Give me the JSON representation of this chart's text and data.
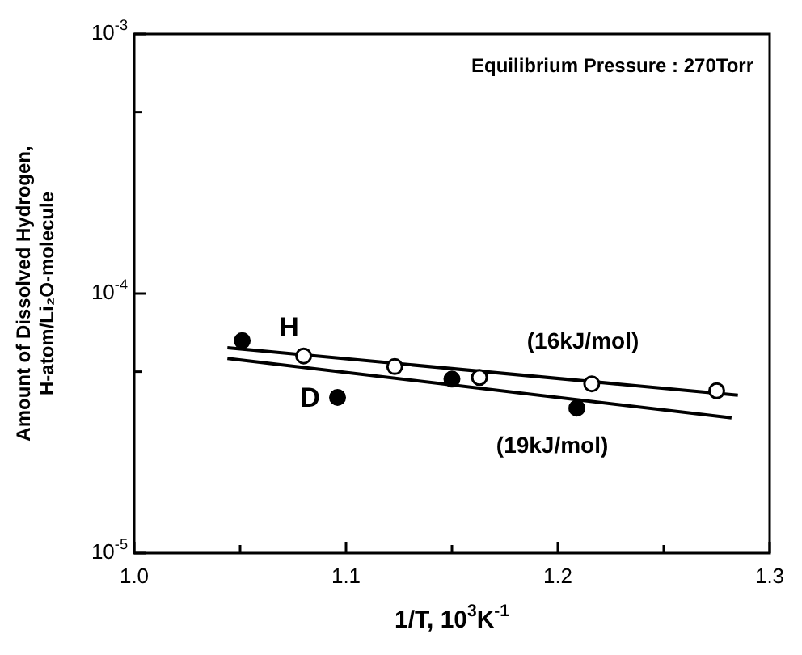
{
  "chart_data": {
    "type": "scatter",
    "xlabel": "1/T, 10$^{3}$K$^{-1}$",
    "ylabel": "Amount of Dissolved Hydrogen,\nH-atom/Li₂O-molecule",
    "xlim": [
      1.0,
      1.3
    ],
    "xticks": [
      {
        "value": 1.0,
        "label": "1.0"
      },
      {
        "value": 1.05,
        "label": null
      },
      {
        "value": 1.1,
        "label": "1.1"
      },
      {
        "value": 1.15,
        "label": null
      },
      {
        "value": 1.2,
        "label": "1.2"
      },
      {
        "value": 1.25,
        "label": null
      },
      {
        "value": 1.3,
        "label": "1.3"
      }
    ],
    "ylim": [
      1e-05,
      0.001
    ],
    "yticks": [
      {
        "value": 1e-05,
        "label": "10$^{-5}$"
      },
      {
        "value": 5e-05,
        "label": null
      },
      {
        "value": 0.0001,
        "label": "10$^{-4}$"
      },
      {
        "value": 0.0005,
        "label": null
      },
      {
        "value": 0.001,
        "label": "10$^{-3}$"
      }
    ],
    "log": "y",
    "marker": "circle",
    "series": [
      {
        "name": "H",
        "color": "#ffffff",
        "x": [
          1.08,
          1.123,
          1.163,
          1.216,
          1.275
        ],
        "values": [
          5.75e-05,
          5.23e-05,
          4.75e-05,
          4.49e-05,
          4.22e-05
        ]
      },
      {
        "name": "D",
        "color": "#000000",
        "x": [
          1.051,
          1.096,
          1.15,
          1.209
        ],
        "values": [
          6.58e-05,
          3.98e-05,
          4.68e-05,
          3.62e-05
        ]
      },
      {
        "type": "line",
        "name": "(16kJ/mol)",
        "color": "#000000",
        "marker": "none",
        "x": [
          1.044,
          1.285
        ],
        "values": [
          6.18e-05,
          4.06e-05
        ]
      },
      {
        "type": "line",
        "name": "(19kJ/mol)",
        "color": "#000000",
        "marker": "none",
        "x": [
          1.044,
          1.282
        ],
        "values": [
          5.62e-05,
          3.32e-05
        ]
      }
    ],
    "annotations": [
      "Equilibrium Pressure : 270Torr"
    ]
  }
}
